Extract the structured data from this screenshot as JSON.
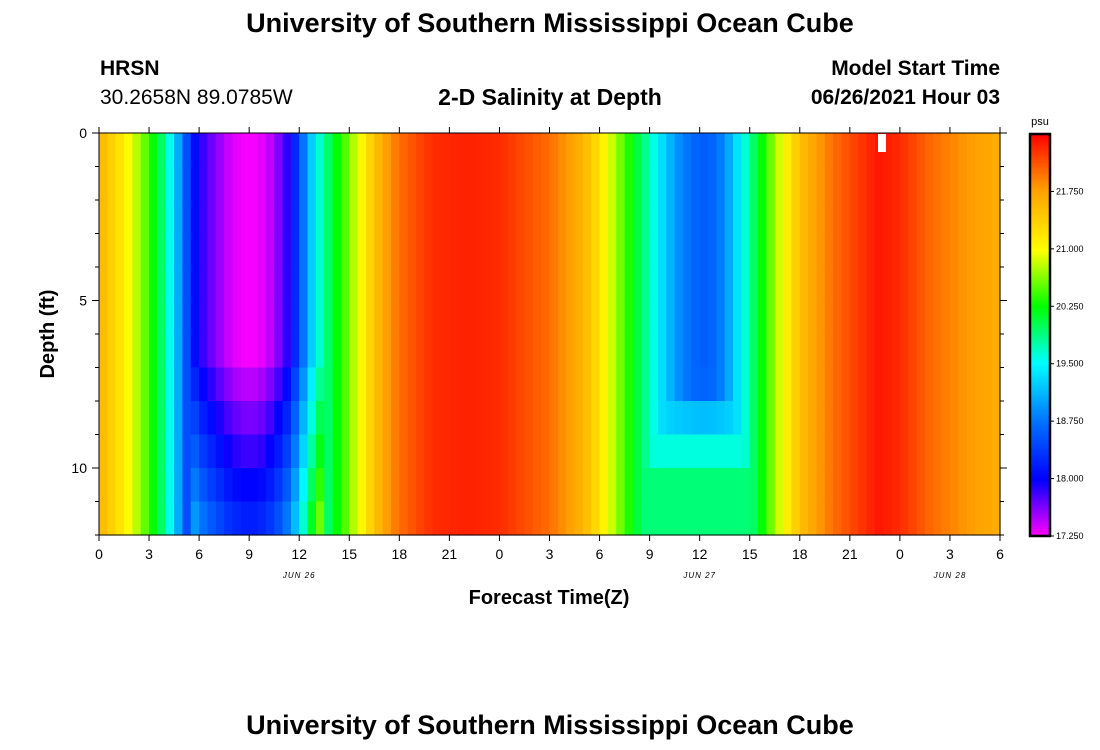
{
  "page": {
    "top_title": "University of Southern Mississippi Ocean Cube",
    "bottom_title": "University of Southern Mississippi Ocean Cube",
    "station": "HRSN",
    "coords": "30.2658N  89.0785W",
    "subtitle": "2-D Salinity at Depth",
    "model_start_label": "Model Start Time",
    "model_start_value": "06/26/2021 Hour 03"
  },
  "chart_data": {
    "type": "heatmap",
    "title": "2-D Salinity at Depth",
    "xlabel": "Forecast Time(Z)",
    "ylabel": "Depth (ft)",
    "x_hours_range": [
      0,
      54
    ],
    "y_range_ft": [
      0,
      12
    ],
    "y_inverted": true,
    "x_tick_hours": [
      0,
      3,
      6,
      9,
      12,
      15,
      18,
      21,
      24,
      27,
      30,
      33,
      36,
      39,
      42,
      45,
      48,
      51,
      54
    ],
    "x_tick_labels": [
      "0",
      "3",
      "6",
      "9",
      "12",
      "15",
      "18",
      "21",
      "0",
      "3",
      "6",
      "9",
      "12",
      "15",
      "18",
      "21",
      "0",
      "3",
      "6"
    ],
    "y_ticks": [
      0,
      5,
      10
    ],
    "date_labels": [
      {
        "hour": 12,
        "text": "JUN 26"
      },
      {
        "hour": 36,
        "text": "JUN 27"
      },
      {
        "hour": 51,
        "text": "JUN 28"
      }
    ],
    "colorbar": {
      "unit": "psu",
      "min": 17.25,
      "max": 22.5,
      "tick_values": [
        17.25,
        18.0,
        18.75,
        19.5,
        20.25,
        21.0,
        21.75
      ],
      "tick_labels": [
        "17.250",
        "18.000",
        "18.750",
        "19.500",
        "20.250",
        "21.000",
        "21.750"
      ]
    },
    "surface_salinity_profile_psu": {
      "hours": [
        0,
        1,
        2,
        3,
        4,
        4.5,
        5,
        5.5,
        6,
        7,
        8,
        9,
        10,
        11,
        11.5,
        12,
        12.5,
        13,
        14,
        15,
        16,
        17,
        18,
        20,
        22,
        24,
        27,
        29,
        30,
        31,
        32,
        33,
        34,
        35,
        36,
        36.5,
        37,
        37.5,
        38,
        39,
        40,
        41,
        42,
        44,
        46,
        46.8,
        48,
        50,
        52,
        54
      ],
      "values": [
        21.6,
        21.3,
        20.9,
        20.4,
        19.8,
        19.3,
        18.8,
        18.2,
        17.9,
        17.6,
        17.35,
        17.25,
        17.35,
        17.7,
        18.0,
        18.5,
        19.0,
        19.5,
        20.1,
        20.6,
        21.2,
        21.7,
        22.0,
        22.3,
        22.35,
        22.3,
        22.0,
        21.6,
        21.2,
        20.7,
        20.2,
        19.7,
        19.2,
        18.8,
        18.6,
        18.6,
        18.7,
        18.9,
        19.2,
        19.8,
        20.4,
        21.0,
        21.5,
        22.0,
        22.3,
        22.4,
        22.3,
        22.0,
        21.8,
        21.65
      ]
    }
  }
}
